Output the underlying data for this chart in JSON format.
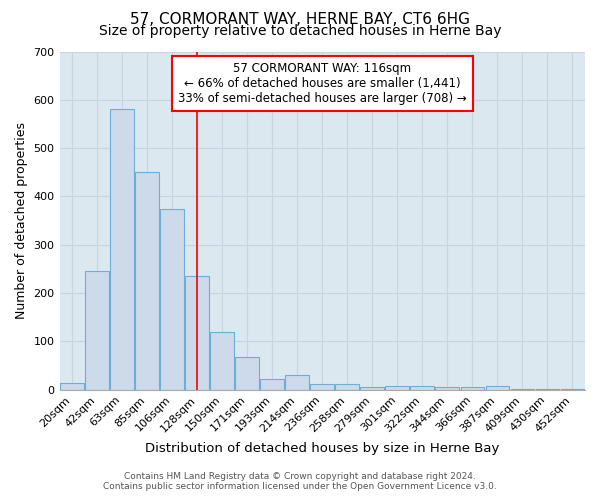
{
  "title": "57, CORMORANT WAY, HERNE BAY, CT6 6HG",
  "subtitle": "Size of property relative to detached houses in Herne Bay",
  "xlabel": "Distribution of detached houses by size in Herne Bay",
  "ylabel": "Number of detached properties",
  "bar_labels": [
    "20sqm",
    "42sqm",
    "63sqm",
    "85sqm",
    "106sqm",
    "128sqm",
    "150sqm",
    "171sqm",
    "193sqm",
    "214sqm",
    "236sqm",
    "258sqm",
    "279sqm",
    "301sqm",
    "322sqm",
    "344sqm",
    "366sqm",
    "387sqm",
    "409sqm",
    "430sqm",
    "452sqm"
  ],
  "bar_values": [
    15,
    245,
    580,
    450,
    375,
    235,
    120,
    68,
    22,
    30,
    12,
    12,
    5,
    8,
    8,
    5,
    5,
    7,
    2,
    2,
    2
  ],
  "bar_color": "#cddaea",
  "bar_edgecolor": "#6baed6",
  "bar_linewidth": 0.8,
  "property_line_label": "57 CORMORANT WAY: 116sqm",
  "annotation_line1": "← 66% of detached houses are smaller (1,441)",
  "annotation_line2": "33% of semi-detached houses are larger (708) →",
  "annotation_box_color": "white",
  "annotation_box_edgecolor": "red",
  "vline_color": "red",
  "vline_linewidth": 1.2,
  "vline_x": 4.975,
  "ylim": [
    0,
    700
  ],
  "yticks": [
    0,
    100,
    200,
    300,
    400,
    500,
    600,
    700
  ],
  "grid_color": "#c8d4e0",
  "bg_color": "#dce8f0",
  "footer_line1": "Contains HM Land Registry data © Crown copyright and database right 2024.",
  "footer_line2": "Contains public sector information licensed under the Open Government Licence v3.0.",
  "title_fontsize": 11,
  "subtitle_fontsize": 10,
  "xlabel_fontsize": 9.5,
  "ylabel_fontsize": 9,
  "tick_fontsize": 8,
  "annotation_fontsize": 8.5,
  "footer_fontsize": 6.5
}
